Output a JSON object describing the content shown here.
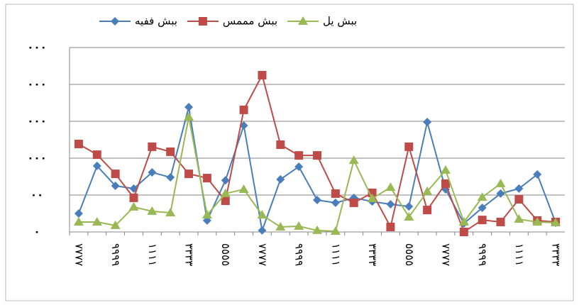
{
  "chart_data": {
    "type": "line",
    "categories": [
      "٧٧٧٧",
      null,
      "٩٩٩٩",
      null,
      "١١١١",
      null,
      "٣٣٣٣",
      null,
      "٥٥٥٥",
      null,
      "٧٧٧٧",
      null,
      "٩٩٩٩",
      null,
      "١١١١",
      null,
      "٣٣٣٣",
      null,
      "٥٥٥٥",
      null,
      "٧٧٧٧",
      null,
      "٩٩٩٩",
      null,
      "١١١١",
      null,
      "٣٣٣٣"
    ],
    "series": [
      {
        "name": "ببش ففيه",
        "color": "#4a7ebb",
        "marker": "diamond",
        "values": [
          10,
          35.8,
          25,
          23.5,
          32.3,
          29.6,
          67.7,
          6.2,
          28,
          57.7,
          0.8,
          28.5,
          35.4,
          17.3,
          15.8,
          18.5,
          16.5,
          15,
          13.8,
          59.6,
          23.1,
          4.6,
          13.1,
          20.8,
          23.5,
          31.2,
          5
        ]
      },
      {
        "name": "ببش مممس",
        "color": "#be4b48",
        "marker": "square",
        "values": [
          47.7,
          41.9,
          31.5,
          18.5,
          46.2,
          43.5,
          31.5,
          29.2,
          16.9,
          66.2,
          85,
          47.3,
          41.5,
          41.5,
          20.8,
          15.8,
          21.2,
          2.7,
          46.2,
          11.9,
          26.2,
          0,
          6.5,
          5.4,
          17.7,
          6.2,
          5.4
        ]
      },
      {
        "name": "ببش يل",
        "color": "#98b954",
        "marker": "triangle",
        "values": [
          5.4,
          5.4,
          3.5,
          13.5,
          11.2,
          10.4,
          62.3,
          9.2,
          20.8,
          23.1,
          9.2,
          2.7,
          3.1,
          0.8,
          0.4,
          38.8,
          18.1,
          24.2,
          8.1,
          21.9,
          33.5,
          5.4,
          18.8,
          26.2,
          6.9,
          5.4,
          5
        ]
      }
    ],
    "ylim": [
      0,
      100
    ],
    "yticks": [
      {
        "value": 0,
        "label": "٠"
      },
      {
        "value": 20,
        "label": "٠٠"
      },
      {
        "value": 40,
        "label": "٠٠٠"
      },
      {
        "value": 60,
        "label": "٠٠٠"
      },
      {
        "value": 80,
        "label": "٠٠٠"
      },
      {
        "value": 100,
        "label": "٠٠٠"
      }
    ],
    "grid": true,
    "legend": "top"
  }
}
